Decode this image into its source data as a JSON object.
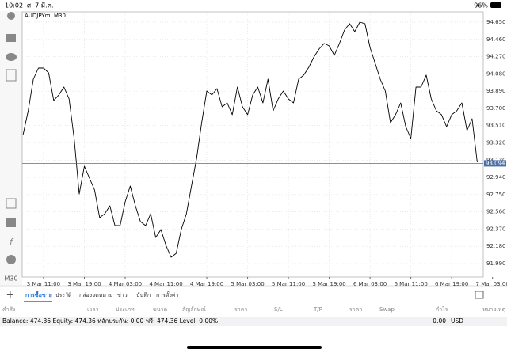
{
  "status_bar": {
    "time": "10:02",
    "date": "ศ. 7 มี.ค.",
    "battery": "96%"
  },
  "toolbar": {
    "timeframe": "M30"
  },
  "chart_data": {
    "type": "line",
    "title": "AUDJPYm, M30",
    "categories": [
      null,
      null,
      null,
      null,
      "3 Mar 11:00",
      null,
      null,
      null,
      null,
      null,
      null,
      null,
      "3 Mar 19:00",
      null,
      null,
      null,
      null,
      null,
      null,
      null,
      "4 Mar 03:00",
      null,
      null,
      null,
      null,
      null,
      null,
      null,
      "4 Mar 11:00",
      null,
      null,
      null,
      null,
      null,
      null,
      null,
      "4 Mar 19:00",
      null,
      null,
      null,
      null,
      null,
      null,
      null,
      "5 Mar 03:00",
      null,
      null,
      null,
      null,
      null,
      null,
      null,
      "5 Mar 11:00",
      null,
      null,
      null,
      null,
      null,
      null,
      null,
      "5 Mar 19:00",
      null,
      null,
      null,
      null,
      null,
      null,
      null,
      "6 Mar 03:00",
      null,
      null,
      null,
      null,
      null,
      null,
      null,
      "6 Mar 11:00",
      null,
      null,
      null,
      null,
      null,
      null,
      null,
      "6 Mar 19:00",
      null,
      null,
      null,
      null,
      null,
      null,
      null,
      "7 Mar 03:00"
    ],
    "values": [
      93.412,
      93.673,
      94.022,
      94.144,
      94.144,
      94.092,
      93.787,
      93.848,
      93.935,
      93.804,
      93.368,
      92.757,
      93.063,
      92.932,
      92.801,
      92.496,
      92.539,
      92.627,
      92.409,
      92.409,
      92.67,
      92.845,
      92.627,
      92.452,
      92.409,
      92.539,
      92.278,
      92.365,
      92.191,
      92.06,
      92.103,
      92.365,
      92.539,
      92.845,
      93.15,
      93.542,
      93.891,
      93.848,
      93.917,
      93.717,
      93.76,
      93.63,
      93.935,
      93.717,
      93.63,
      93.848,
      93.935,
      93.76,
      94.022,
      93.673,
      93.804,
      93.891,
      93.804,
      93.76,
      94.022,
      94.066,
      94.153,
      94.266,
      94.353,
      94.415,
      94.388,
      94.284,
      94.415,
      94.563,
      94.633,
      94.545,
      94.65,
      94.633,
      94.371,
      94.196,
      94.022,
      93.891,
      93.542,
      93.63,
      93.76,
      93.499,
      93.368,
      93.935,
      93.935,
      94.066,
      93.804,
      93.673,
      93.63,
      93.499,
      93.63,
      93.673,
      93.76,
      93.455,
      93.586,
      93.106,
      null,
      null,
      null
    ],
    "color": "#000000",
    "current_price": 93.094,
    "current_color": "#4a6fa5",
    "ylim": [
      91.842,
      94.763
    ],
    "yticks": [
      {
        "value": 94.65,
        "label": "94.650"
      },
      {
        "value": 94.46,
        "label": "94.460"
      },
      {
        "value": 94.27,
        "label": "94.270"
      },
      {
        "value": 94.08,
        "label": "94.080"
      },
      {
        "value": 93.89,
        "label": "93.890"
      },
      {
        "value": 93.7,
        "label": "93.700"
      },
      {
        "value": 93.51,
        "label": "93.510"
      },
      {
        "value": 93.32,
        "label": "93.320"
      },
      {
        "value": 93.13,
        "label": "93.130"
      },
      {
        "value": 92.94,
        "label": "92.940"
      },
      {
        "value": 92.75,
        "label": "92.750"
      },
      {
        "value": 92.56,
        "label": "92.560"
      },
      {
        "value": 92.37,
        "label": "92.370"
      },
      {
        "value": 92.18,
        "label": "92.180"
      },
      {
        "value": 91.99,
        "label": "91.990"
      }
    ],
    "grid": true
  },
  "tabs": [
    "การซื้อขาย",
    "ประวัติ",
    "กล่องจดหมาย",
    "ข่าว",
    "บันทึก",
    "การตั้งค่า"
  ],
  "columns": [
    "คำสั่ง",
    "เวลา",
    "ประเภท",
    "ขนาด",
    "สัญลักษณ์",
    "ราคา",
    "S/L",
    "T/P",
    "ราคา",
    "Swap",
    "กำไร",
    "หมายเหตุ"
  ],
  "summary": {
    "text": "Balance: 474.36 Equity: 474.36 หลักประกัน: 0.00 ฟรี: 474.36 Level: 0.00%",
    "profit": "0.00",
    "currency": "USD"
  }
}
